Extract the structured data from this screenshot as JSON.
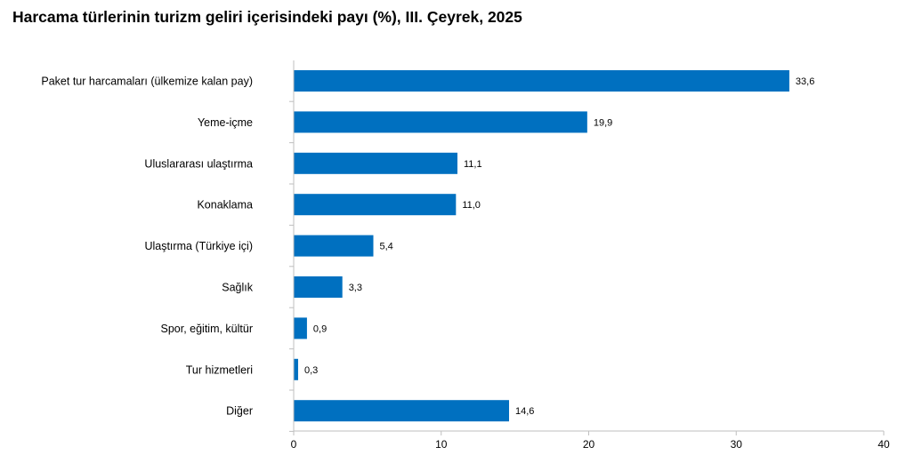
{
  "chart_data": {
    "type": "bar",
    "orientation": "horizontal",
    "title": "Harcama türlerinin turizm geliri içerisindeki payı (%), III. Çeyrek, 2025",
    "xlabel": "",
    "ylabel": "",
    "categories": [
      "Paket tur harcamaları (ülkemize kalan pay)",
      "Yeme-içme",
      "Uluslararası ulaştırma",
      "Konaklama",
      "Ulaştırma (Türkiye içi)",
      "Sağlık",
      "Spor, eğitim, kültür",
      "Tur hizmetleri",
      "Diğer"
    ],
    "values": [
      33.6,
      19.9,
      11.1,
      11.0,
      5.4,
      3.3,
      0.9,
      0.3,
      14.6
    ],
    "value_labels": [
      "33,6",
      "19,9",
      "11,1",
      "11,0",
      "5,4",
      "3,3",
      "0,9",
      "0,3",
      "14,6"
    ],
    "xlim": [
      0,
      40
    ],
    "xticks": [
      0,
      10,
      20,
      30,
      40
    ],
    "xtick_labels": [
      "0",
      "10",
      "20",
      "30",
      "40"
    ],
    "grid": false,
    "legend": "none",
    "bar_color": "#0070C0",
    "axis_color": "#BFBFBF"
  }
}
